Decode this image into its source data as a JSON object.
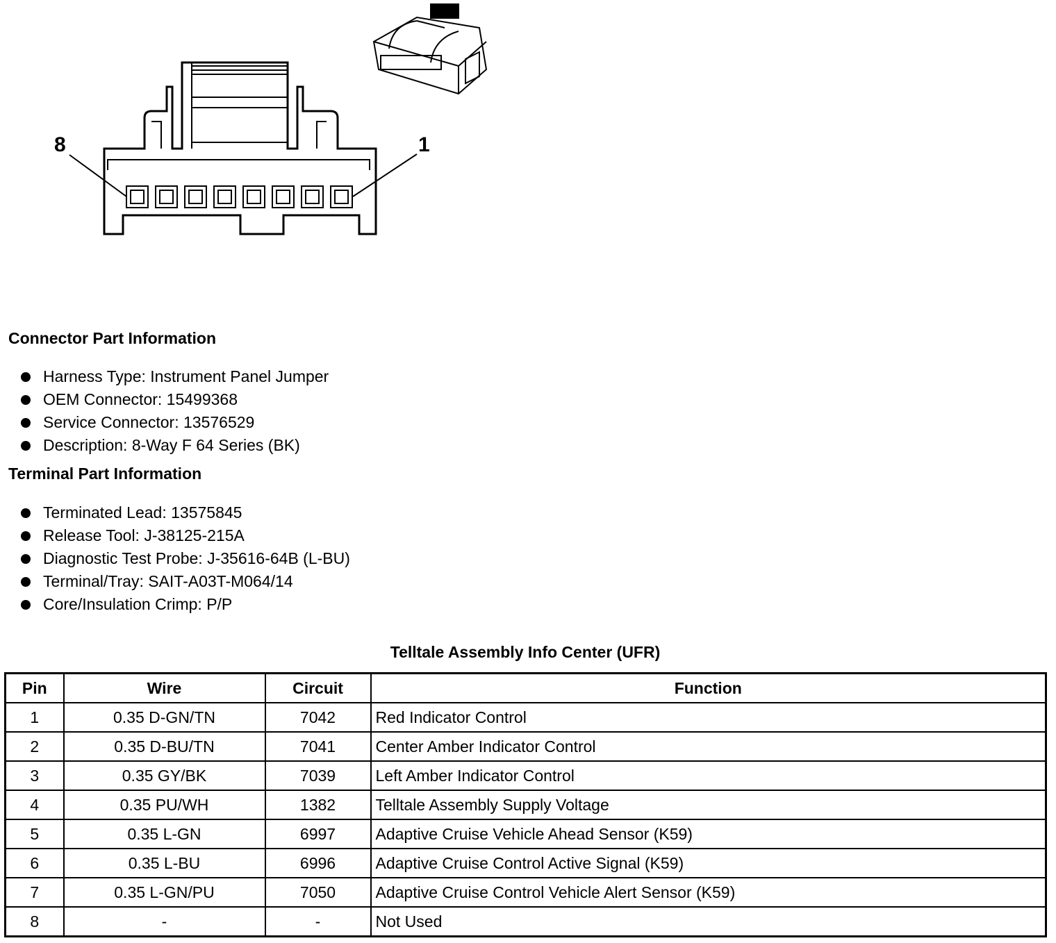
{
  "diagram": {
    "pin_labels": {
      "left": "8",
      "right": "1"
    },
    "pin_count": 8
  },
  "connector_info": {
    "heading": "Connector Part Information",
    "items": [
      "Harness Type: Instrument Panel Jumper",
      "OEM Connector: 15499368",
      "Service Connector: 13576529",
      "Description: 8-Way F 64 Series (BK)"
    ]
  },
  "terminal_info": {
    "heading": "Terminal Part Information",
    "items": [
      "Terminated Lead: 13575845",
      "Release Tool: J-38125-215A",
      "Diagnostic Test Probe: J-35616-64B (L-BU)",
      "Terminal/Tray: SAIT-A03T-M064/14",
      "Core/Insulation Crimp: P/P"
    ]
  },
  "table": {
    "title": "Telltale Assembly Info Center (UFR)",
    "headers": [
      "Pin",
      "Wire",
      "Circuit",
      "Function"
    ],
    "rows": [
      [
        "1",
        "0.35 D-GN/TN",
        "7042",
        "Red Indicator Control"
      ],
      [
        "2",
        "0.35 D-BU/TN",
        "7041",
        "Center Amber Indicator Control"
      ],
      [
        "3",
        "0.35 GY/BK",
        "7039",
        "Left Amber Indicator Control"
      ],
      [
        "4",
        "0.35 PU/WH",
        "1382",
        "Telltale Assembly Supply Voltage"
      ],
      [
        "5",
        "0.35 L-GN",
        "6997",
        "Adaptive Cruise Vehicle Ahead Sensor (K59)"
      ],
      [
        "6",
        "0.35 L-BU",
        "6996",
        "Adaptive Cruise Control Active Signal (K59)"
      ],
      [
        "7",
        "0.35 L-GN/PU",
        "7050",
        "Adaptive Cruise Control Vehicle Alert Sensor (K59)"
      ],
      [
        "8",
        "-",
        "-",
        "Not Used"
      ]
    ]
  }
}
